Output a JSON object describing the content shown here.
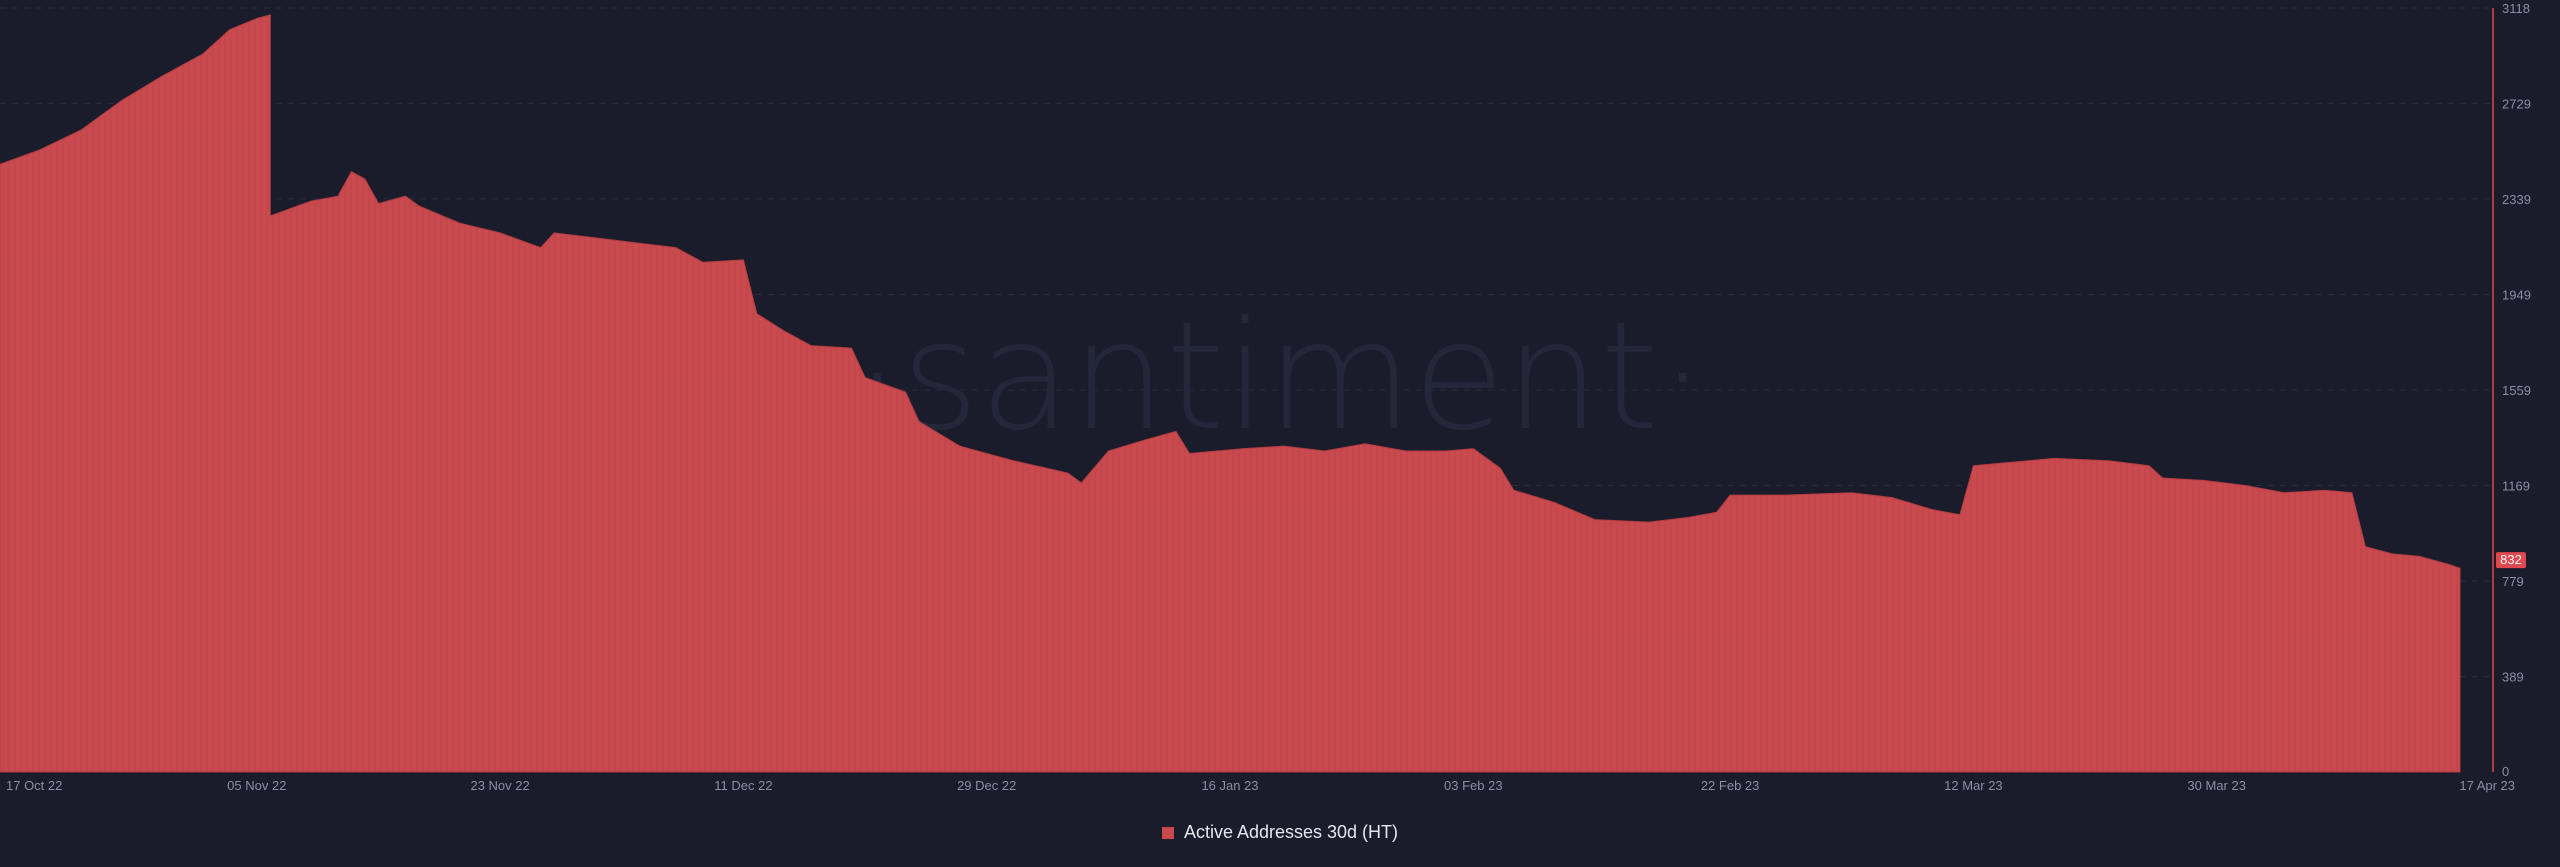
{
  "chart_data": {
    "type": "area",
    "series": [
      {
        "name": "Active Addresses 30d (HT)",
        "color": "#c94a4e",
        "points": [
          [
            "2022-10-17",
            2480
          ],
          [
            "2022-10-20",
            2540
          ],
          [
            "2022-10-23",
            2620
          ],
          [
            "2022-10-26",
            2740
          ],
          [
            "2022-10-29",
            2840
          ],
          [
            "2022-11-01",
            2930
          ],
          [
            "2022-11-03",
            3030
          ],
          [
            "2022-11-05",
            3075
          ],
          [
            "2022-11-06",
            3090
          ],
          [
            "2022-11-06",
            2270
          ],
          [
            "2022-11-09",
            2330
          ],
          [
            "2022-11-11",
            2350
          ],
          [
            "2022-11-12",
            2450
          ],
          [
            "2022-11-13",
            2420
          ],
          [
            "2022-11-14",
            2320
          ],
          [
            "2022-11-16",
            2350
          ],
          [
            "2022-11-17",
            2310
          ],
          [
            "2022-11-20",
            2240
          ],
          [
            "2022-11-23",
            2200
          ],
          [
            "2022-11-26",
            2140
          ],
          [
            "2022-11-27",
            2200
          ],
          [
            "2022-11-30",
            2180
          ],
          [
            "2022-12-03",
            2160
          ],
          [
            "2022-12-06",
            2140
          ],
          [
            "2022-12-08",
            2080
          ],
          [
            "2022-12-11",
            2090
          ],
          [
            "2022-12-12",
            1870
          ],
          [
            "2022-12-14",
            1800
          ],
          [
            "2022-12-16",
            1740
          ],
          [
            "2022-12-19",
            1730
          ],
          [
            "2022-12-20",
            1610
          ],
          [
            "2022-12-23",
            1550
          ],
          [
            "2022-12-24",
            1430
          ],
          [
            "2022-12-27",
            1330
          ],
          [
            "2022-12-31",
            1270
          ],
          [
            "2023-01-04",
            1220
          ],
          [
            "2023-01-05",
            1180
          ],
          [
            "2023-01-07",
            1310
          ],
          [
            "2023-01-10",
            1360
          ],
          [
            "2023-01-12",
            1390
          ],
          [
            "2023-01-13",
            1300
          ],
          [
            "2023-01-17",
            1320
          ],
          [
            "2023-01-20",
            1330
          ],
          [
            "2023-01-23",
            1310
          ],
          [
            "2023-01-26",
            1340
          ],
          [
            "2023-01-29",
            1310
          ],
          [
            "2023-02-01",
            1310
          ],
          [
            "2023-02-03",
            1320
          ],
          [
            "2023-02-05",
            1240
          ],
          [
            "2023-02-06",
            1150
          ],
          [
            "2023-02-09",
            1100
          ],
          [
            "2023-02-12",
            1030
          ],
          [
            "2023-02-16",
            1020
          ],
          [
            "2023-02-19",
            1040
          ],
          [
            "2023-02-21",
            1060
          ],
          [
            "2023-02-22",
            1130
          ],
          [
            "2023-02-26",
            1130
          ],
          [
            "2023-03-03",
            1140
          ],
          [
            "2023-03-06",
            1120
          ],
          [
            "2023-03-09",
            1070
          ],
          [
            "2023-03-11",
            1050
          ],
          [
            "2023-03-12",
            1250
          ],
          [
            "2023-03-14",
            1260
          ],
          [
            "2023-03-18",
            1280
          ],
          [
            "2023-03-22",
            1270
          ],
          [
            "2023-03-25",
            1250
          ],
          [
            "2023-03-26",
            1200
          ],
          [
            "2023-03-29",
            1190
          ],
          [
            "2023-04-01",
            1170
          ],
          [
            "2023-04-04",
            1140
          ],
          [
            "2023-04-07",
            1150
          ],
          [
            "2023-04-09",
            1140
          ],
          [
            "2023-04-10",
            920
          ],
          [
            "2023-04-12",
            890
          ],
          [
            "2023-04-14",
            880
          ],
          [
            "2023-04-16",
            850
          ],
          [
            "2023-04-17",
            832
          ]
        ]
      }
    ],
    "xticks": [
      "17 Oct 22",
      "05 Nov 22",
      "23 Nov 22",
      "11 Dec 22",
      "29 Dec 22",
      "16 Jan 23",
      "03 Feb 23",
      "22 Feb 23",
      "12 Mar 23",
      "30 Mar 23",
      "17 Apr 23"
    ],
    "xtick_dates": [
      "2022-10-17",
      "2022-11-05",
      "2022-11-23",
      "2022-12-11",
      "2022-12-29",
      "2023-01-16",
      "2023-02-03",
      "2023-02-22",
      "2023-03-12",
      "2023-03-30",
      "2023-04-17"
    ],
    "yticks": [
      0,
      389,
      779,
      1169,
      1559,
      1949,
      2339,
      2729,
      3118
    ],
    "ylim": [
      0,
      3118
    ],
    "xlim": [
      "2022-10-17",
      "2023-04-17"
    ],
    "last_value_label": "832",
    "grid": true,
    "legend_position": "bottom-center"
  },
  "watermark": "·santiment·",
  "legend": {
    "label": "Active Addresses 30d (HT)",
    "color": "#c94a4e"
  },
  "colors": {
    "background": "#1a1b2b",
    "accent_axis": "#e0474e",
    "badge": "#e0474e"
  }
}
